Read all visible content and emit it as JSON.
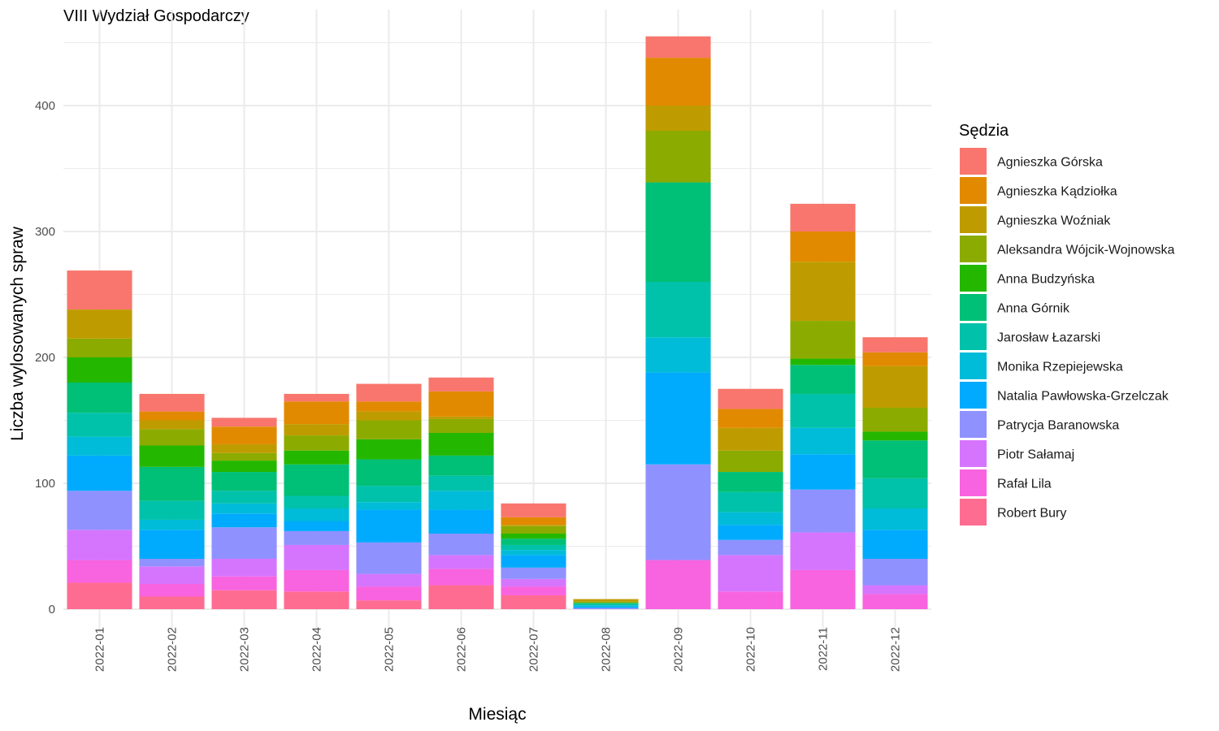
{
  "chart_data": {
    "type": "bar",
    "stacked": true,
    "title": "VIII Wydział Gospodarczy",
    "xlabel": "Miesiąc",
    "ylabel": "Liczba wylosowanych spraw",
    "ylim": [
      0,
      460
    ],
    "yticks": [
      0,
      100,
      200,
      300,
      400
    ],
    "grid": true,
    "legend_title": "Sędzia",
    "legend_position": "right",
    "categories": [
      "2022-01",
      "2022-02",
      "2022-03",
      "2022-04",
      "2022-05",
      "2022-06",
      "2022-07",
      "2022-08",
      "2022-09",
      "2022-10",
      "2022-11",
      "2022-12"
    ],
    "series": [
      {
        "name": "Robert Bury",
        "color": "#FF6C91",
        "values": [
          21,
          10,
          15,
          14,
          7,
          19,
          11,
          0,
          0,
          0,
          0,
          0
        ]
      },
      {
        "name": "Rafał Lila",
        "color": "#F863DF",
        "values": [
          18,
          10,
          11,
          17,
          11,
          13,
          7,
          0,
          39,
          14,
          31,
          12
        ]
      },
      {
        "name": "Piotr Sałamaj",
        "color": "#D575FE",
        "values": [
          24,
          14,
          14,
          20,
          10,
          11,
          6,
          0,
          0,
          29,
          30,
          7
        ]
      },
      {
        "name": "Patrycja Baranowska",
        "color": "#8F91FF",
        "values": [
          31,
          6,
          25,
          11,
          25,
          17,
          9,
          1,
          76,
          12,
          34,
          21
        ]
      },
      {
        "name": "Natalia Pawłowska-Grzelczak",
        "color": "#00ABFD",
        "values": [
          28,
          23,
          11,
          8,
          26,
          19,
          10,
          1,
          73,
          12,
          28,
          23
        ]
      },
      {
        "name": "Monika Rzepiejewska",
        "color": "#00BCD8",
        "values": [
          15,
          8,
          8,
          10,
          6,
          15,
          4,
          1,
          28,
          10,
          21,
          17
        ]
      },
      {
        "name": "Jarosław Łazarski",
        "color": "#00C1AA",
        "values": [
          19,
          15,
          10,
          10,
          13,
          12,
          4,
          1,
          44,
          16,
          27,
          24
        ]
      },
      {
        "name": "Anna Górnik",
        "color": "#00BF76",
        "values": [
          24,
          27,
          15,
          25,
          21,
          16,
          5,
          1,
          79,
          16,
          23,
          30
        ]
      },
      {
        "name": "Anna Budzyńska",
        "color": "#24B700",
        "values": [
          20,
          17,
          9,
          11,
          16,
          18,
          4,
          0,
          0,
          0,
          5,
          7
        ]
      },
      {
        "name": "Aleksandra Wójcik-Wojnowska",
        "color": "#8CAB00",
        "values": [
          15,
          13,
          6,
          12,
          15,
          11,
          6,
          1,
          41,
          17,
          30,
          19
        ]
      },
      {
        "name": "Agnieszka Woźniak",
        "color": "#BE9C00",
        "values": [
          23,
          7,
          7,
          9,
          7,
          2,
          1,
          2,
          20,
          18,
          47,
          33
        ]
      },
      {
        "name": "Agnieszka Kądziołka",
        "color": "#E18A00",
        "values": [
          0,
          7,
          14,
          18,
          8,
          20,
          6,
          0,
          38,
          15,
          24,
          11
        ]
      },
      {
        "name": "Agnieszka Górska",
        "color": "#F8766D",
        "values": [
          31,
          14,
          7,
          6,
          14,
          11,
          11,
          0,
          17,
          16,
          22,
          12
        ]
      }
    ]
  }
}
